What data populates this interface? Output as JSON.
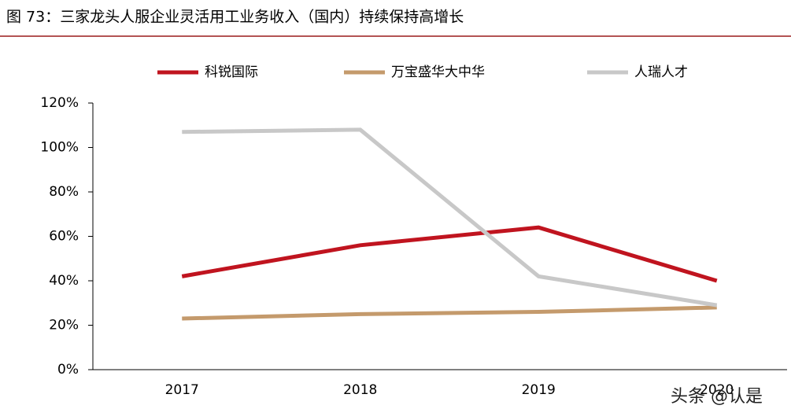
{
  "chart_data": {
    "type": "line",
    "title": "图 73：三家龙头人服企业灵活用工业务收入（国内）持续保持高增长",
    "categories": [
      "2017",
      "2018",
      "2019",
      "2020"
    ],
    "series": [
      {
        "name": "科锐国际",
        "color": "#c0141f",
        "values": [
          42,
          56,
          64,
          40
        ]
      },
      {
        "name": "万宝盛华大中华",
        "color": "#c49a6c",
        "values": [
          23,
          25,
          26,
          28
        ]
      },
      {
        "name": "人瑞人才",
        "color": "#c8c8c8",
        "values": [
          107,
          108,
          42,
          29
        ]
      }
    ],
    "ylim": [
      0,
      120
    ],
    "yticks": [
      {
        "value": 0,
        "label": "0%"
      },
      {
        "value": 20,
        "label": "20%"
      },
      {
        "value": 40,
        "label": "40%"
      },
      {
        "value": 60,
        "label": "60%"
      },
      {
        "value": 80,
        "label": "80%"
      },
      {
        "value": 100,
        "label": "100%"
      },
      {
        "value": 120,
        "label": "120%"
      }
    ],
    "legend": "top",
    "watermark": "头条 @认是"
  }
}
